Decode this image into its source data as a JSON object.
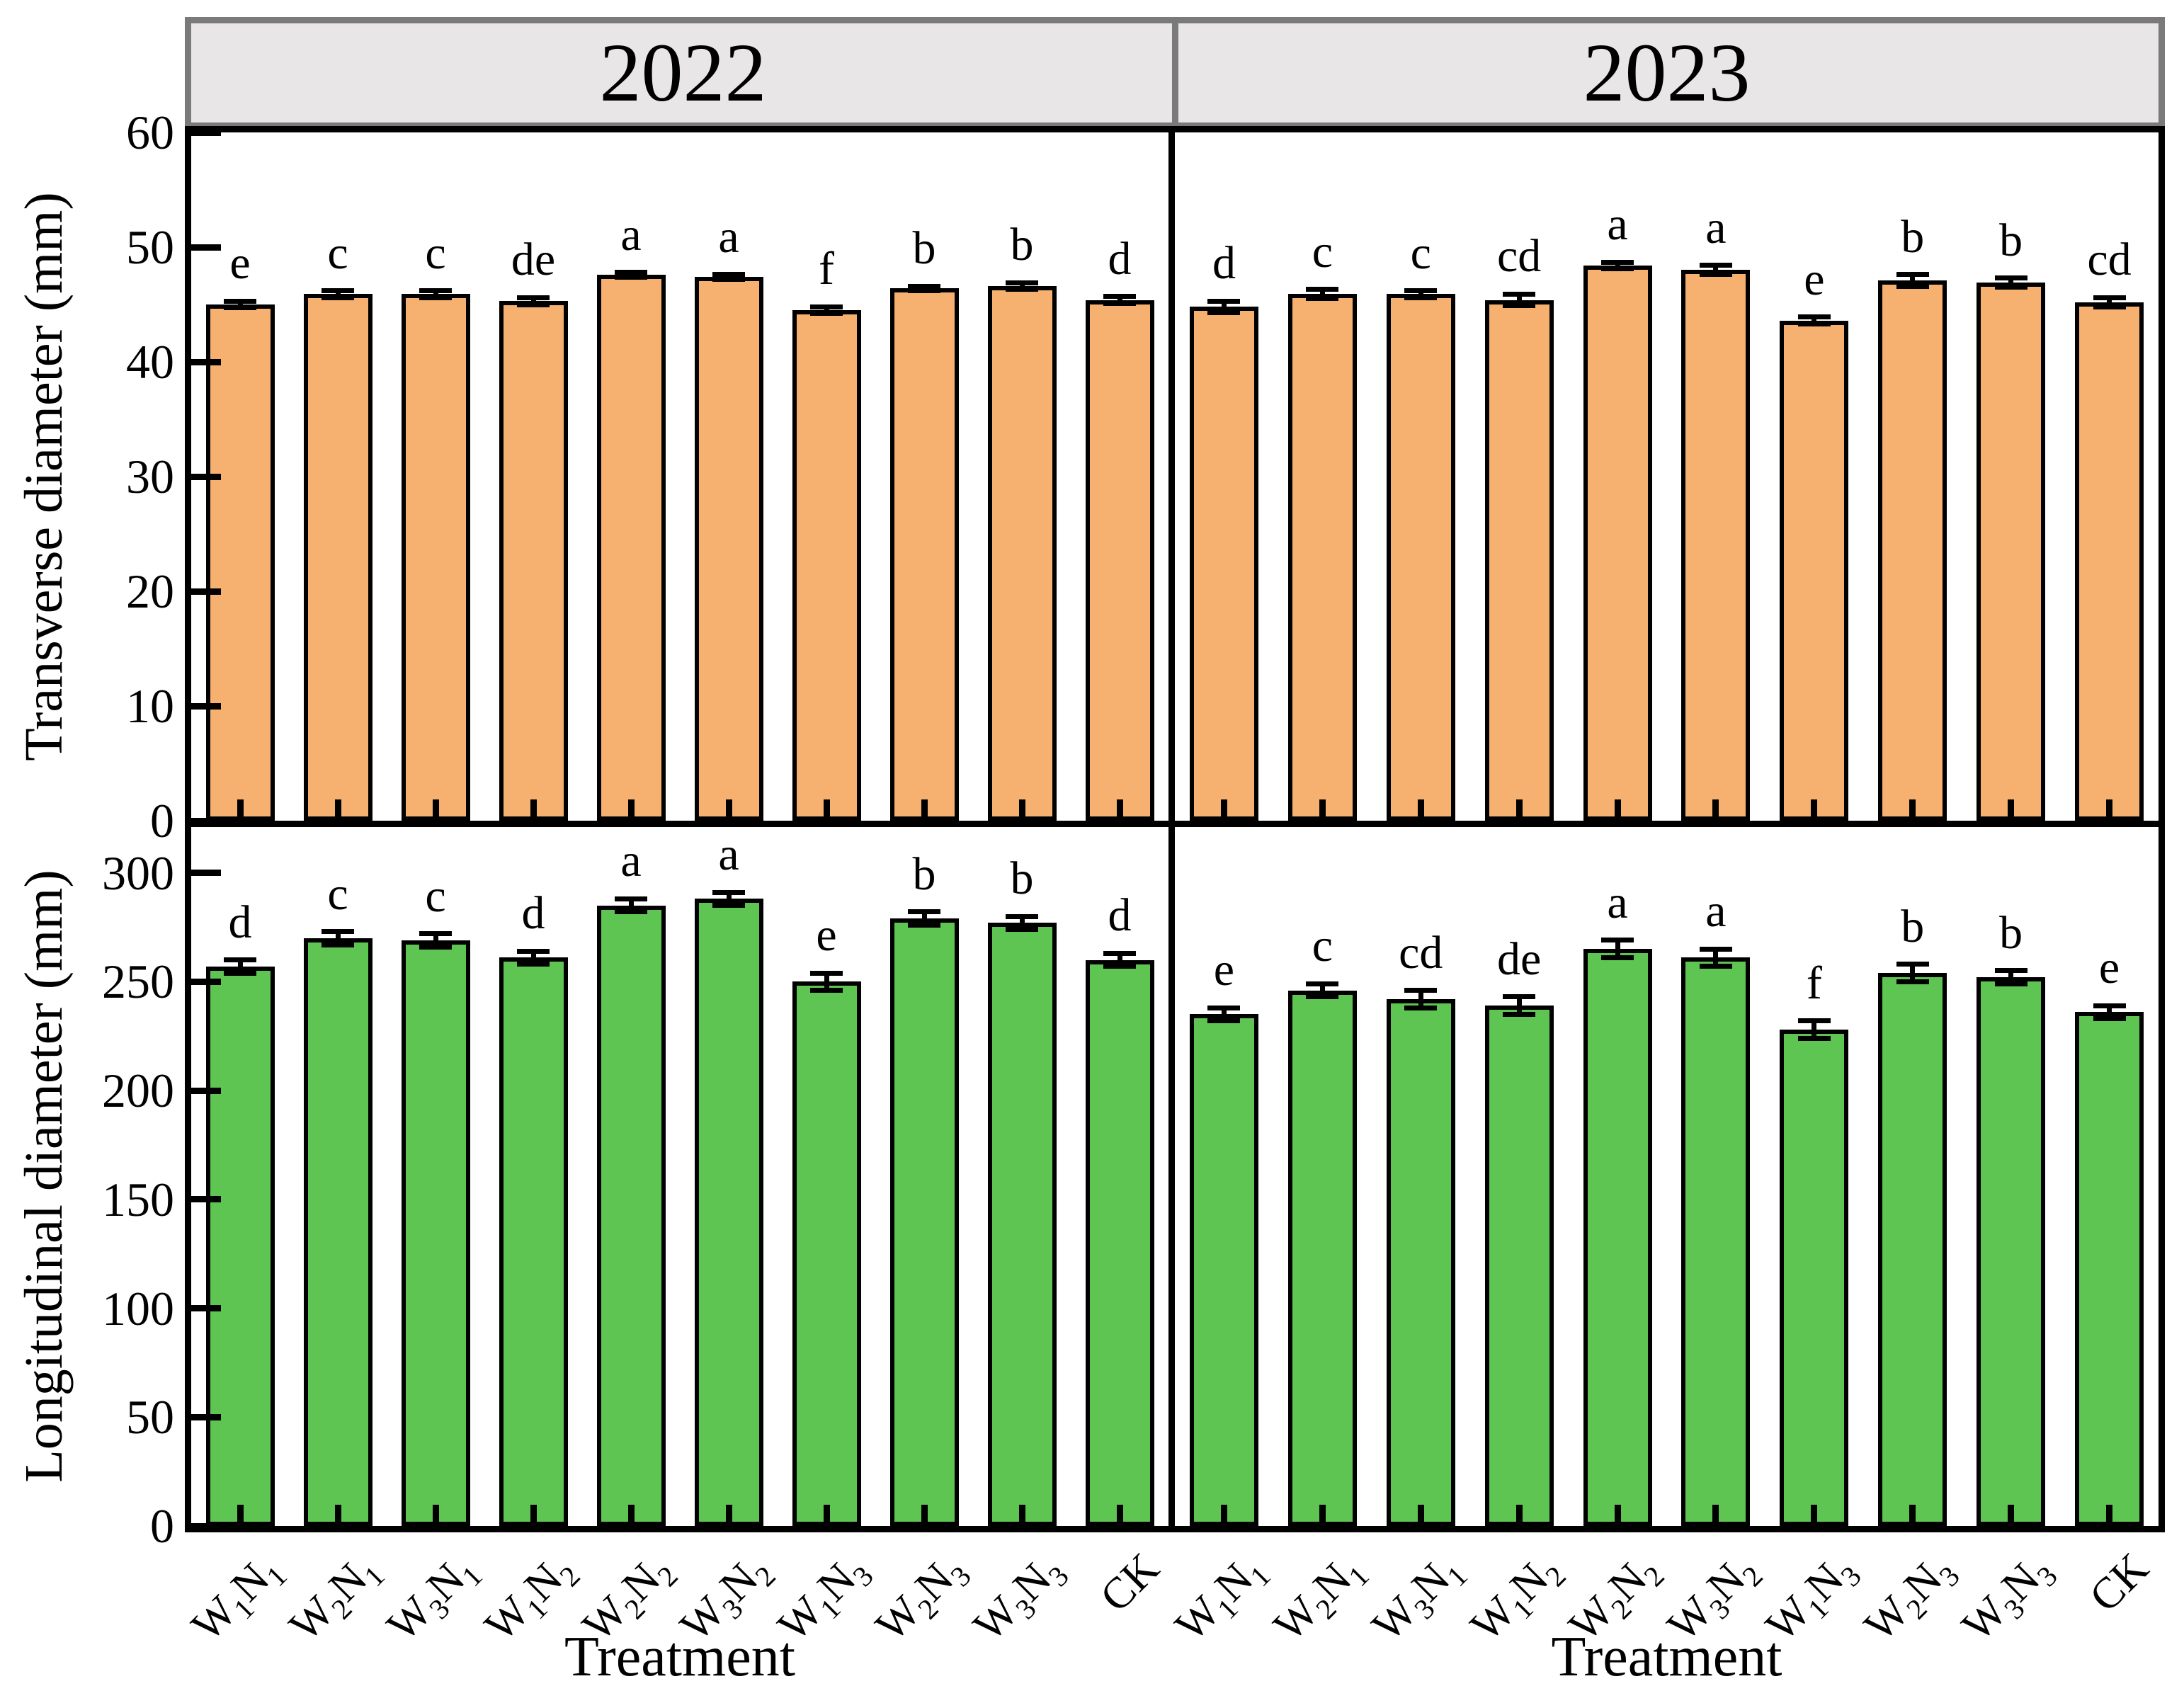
{
  "figure": {
    "year_headers": [
      "2022",
      "2023"
    ],
    "y_axis_titles": [
      "Transverse diameter (mm)",
      "Longitudinal diameter (mm)"
    ],
    "x_axis_title": "Treatment",
    "categories": [
      "W_1N_1",
      "W_2N_1",
      "W_3N_1",
      "W_1N_2",
      "W_2N_2",
      "W_3N_2",
      "W_1N_3",
      "W_2N_3",
      "W_3N_3",
      "CK"
    ],
    "colors": {
      "transverse_bar": "#F6B06F",
      "longitudinal_bar": "#5EC452",
      "bar_border": "#000000",
      "header_bg": "#E8E6E6",
      "header_border": "#7A7A7A",
      "axis": "#000000"
    }
  },
  "chart_data": [
    {
      "type": "bar",
      "panel": "transverse-2022",
      "year": "2022",
      "ylabel": "Transverse diameter (mm)",
      "xlabel": "Treatment",
      "ylim": [
        0,
        60
      ],
      "yticks": [
        0,
        10,
        20,
        30,
        40,
        50,
        60
      ],
      "grid": false,
      "bar_color": "#F6B06F",
      "categories": [
        "W_1N_1",
        "W_2N_1",
        "W_3N_1",
        "W_1N_2",
        "W_2N_2",
        "W_3N_2",
        "W_1N_3",
        "W_2N_3",
        "W_3N_3",
        "CK"
      ],
      "values": [
        45.0,
        45.9,
        45.9,
        45.3,
        47.6,
        47.4,
        44.5,
        46.4,
        46.6,
        45.4
      ],
      "errors": [
        0.3,
        0.3,
        0.3,
        0.3,
        0.2,
        0.2,
        0.3,
        0.2,
        0.3,
        0.3
      ],
      "letters": [
        "e",
        "c",
        "c",
        "de",
        "a",
        "a",
        "f",
        "b",
        "b",
        "d"
      ]
    },
    {
      "type": "bar",
      "panel": "transverse-2023",
      "year": "2023",
      "ylabel": "Transverse diameter (mm)",
      "xlabel": "Treatment",
      "ylim": [
        0,
        60
      ],
      "yticks": [
        0,
        10,
        20,
        30,
        40,
        50,
        60
      ],
      "grid": false,
      "bar_color": "#F6B06F",
      "categories": [
        "W_1N_1",
        "W_2N_1",
        "W_3N_1",
        "W_1N_2",
        "W_2N_2",
        "W_3N_2",
        "W_1N_3",
        "W_2N_3",
        "W_3N_3",
        "CK"
      ],
      "values": [
        44.8,
        45.9,
        45.9,
        45.4,
        48.4,
        48.0,
        43.6,
        47.1,
        46.9,
        45.2
      ],
      "errors": [
        0.5,
        0.4,
        0.3,
        0.5,
        0.3,
        0.4,
        0.3,
        0.5,
        0.4,
        0.4
      ],
      "letters": [
        "d",
        "c",
        "c",
        "cd",
        "a",
        "a",
        "e",
        "b",
        "b",
        "cd"
      ]
    },
    {
      "type": "bar",
      "panel": "longitudinal-2022",
      "year": "2022",
      "ylabel": "Longitudinal diameter (mm)",
      "xlabel": "Treatment",
      "ylim": [
        0,
        300
      ],
      "yticks": [
        0,
        50,
        100,
        150,
        200,
        250,
        300
      ],
      "grid": false,
      "bar_color": "#5EC452",
      "categories": [
        "W_1N_1",
        "W_2N_1",
        "W_3N_1",
        "W_1N_2",
        "W_2N_2",
        "W_3N_2",
        "W_1N_3",
        "W_2N_3",
        "W_3N_3",
        "CK"
      ],
      "values": [
        257,
        270,
        269,
        261,
        285,
        288,
        250,
        279,
        277,
        260
      ],
      "errors": [
        3,
        3,
        3,
        3,
        3,
        3,
        4,
        3,
        3,
        3
      ],
      "letters": [
        "d",
        "c",
        "c",
        "d",
        "a",
        "a",
        "e",
        "b",
        "b",
        "d"
      ]
    },
    {
      "type": "bar",
      "panel": "longitudinal-2023",
      "year": "2023",
      "ylabel": "Longitudinal diameter (mm)",
      "xlabel": "Treatment",
      "ylim": [
        0,
        300
      ],
      "yticks": [
        0,
        50,
        100,
        150,
        200,
        250,
        300
      ],
      "grid": false,
      "bar_color": "#5EC452",
      "categories": [
        "W_1N_1",
        "W_2N_1",
        "W_3N_1",
        "W_1N_2",
        "W_2N_2",
        "W_3N_2",
        "W_1N_3",
        "W_2N_3",
        "W_3N_3",
        "CK"
      ],
      "values": [
        235,
        246,
        242,
        239,
        265,
        261,
        228,
        254,
        252,
        236
      ],
      "errors": [
        3,
        3,
        4,
        4,
        4,
        4,
        4,
        4,
        3,
        3
      ],
      "letters": [
        "e",
        "c",
        "cd",
        "de",
        "a",
        "a",
        "f",
        "b",
        "b",
        "e"
      ]
    }
  ]
}
